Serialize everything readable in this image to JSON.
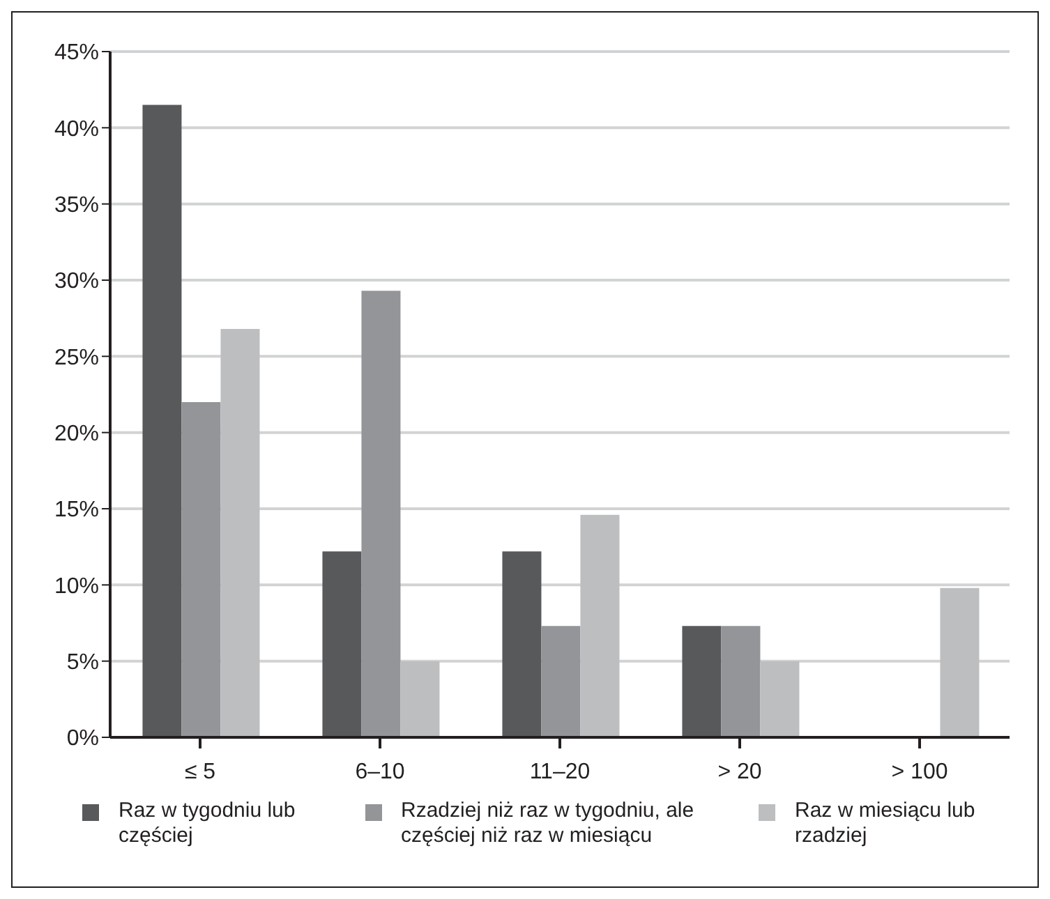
{
  "chart_data": {
    "type": "bar",
    "categories": [
      "≤ 5",
      "6–10",
      "11–20",
      "> 20",
      "> 100"
    ],
    "series": [
      {
        "name": "Raz w tygodniu lub częściej",
        "color": "#58595b",
        "values": [
          41.5,
          12.2,
          12.2,
          7.3,
          0
        ]
      },
      {
        "name": "Rzadziej niż raz w tygodniu, ale częściej niż raz w miesiącu",
        "color": "#939598",
        "values": [
          22.0,
          29.3,
          7.3,
          7.3,
          0
        ]
      },
      {
        "name": "Raz w miesiącu lub rzadziej",
        "color": "#bcbec0",
        "values": [
          26.8,
          5.0,
          14.6,
          5.0,
          9.8
        ]
      }
    ],
    "ylim": [
      0,
      45
    ],
    "yticks": [
      {
        "value": 0,
        "label": "0%"
      },
      {
        "value": 5,
        "label": "5%"
      },
      {
        "value": 10,
        "label": "10%"
      },
      {
        "value": 15,
        "label": "15%"
      },
      {
        "value": 20,
        "label": "20%"
      },
      {
        "value": 25,
        "label": "25%"
      },
      {
        "value": 30,
        "label": "30%"
      },
      {
        "value": 35,
        "label": "35%"
      },
      {
        "value": 40,
        "label": "40%"
      },
      {
        "value": 45,
        "label": "45%"
      }
    ],
    "grid": "y",
    "legend": "bottom"
  }
}
